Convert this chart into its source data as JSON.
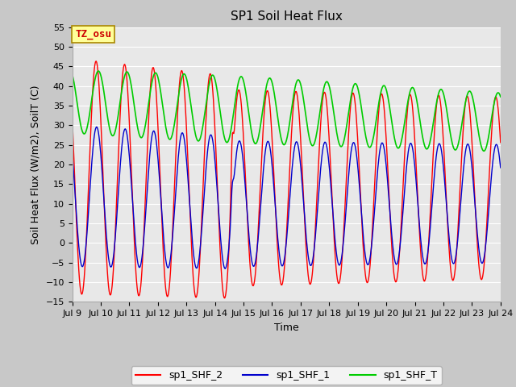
{
  "title": "SP1 Soil Heat Flux",
  "xlabel": "Time",
  "ylabel": "Soil Heat Flux (W/m2), SoilT (C)",
  "ylim": [
    -15,
    55
  ],
  "yticks": [
    -15,
    -10,
    -5,
    0,
    5,
    10,
    15,
    20,
    25,
    30,
    35,
    40,
    45,
    50,
    55
  ],
  "xlim_days": [
    9,
    24
  ],
  "xtick_days": [
    9,
    10,
    11,
    12,
    13,
    14,
    15,
    16,
    17,
    18,
    19,
    20,
    21,
    22,
    23,
    24
  ],
  "line_colors": {
    "sp1_SHF_2": "#ff0000",
    "sp1_SHF_1": "#0000cc",
    "sp1_SHF_T": "#00cc00"
  },
  "annotation_text": "TZ_osu",
  "annotation_bbox_facecolor": "#ffff99",
  "annotation_bbox_edgecolor": "#aa8800",
  "annotation_text_color": "#cc0000",
  "plot_bg_color": "#e8e8e8",
  "fig_bg_color": "#c8c8c8",
  "grid_color": "#ffffff",
  "title_fontsize": 11,
  "axis_fontsize": 9,
  "tick_fontsize": 8,
  "legend_fontsize": 9
}
